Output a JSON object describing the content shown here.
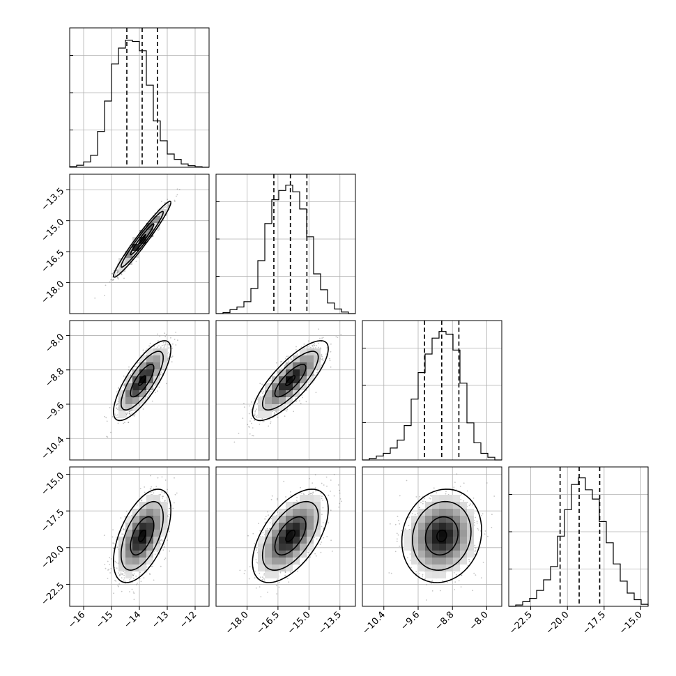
{
  "chart_data": {
    "type": "corner",
    "grid": true,
    "params": [
      {
        "range": [
          -16.5,
          -11.5
        ],
        "ticks": [
          -16,
          -15,
          -14,
          -13,
          -12
        ],
        "tick_labels": [
          "−16",
          "−15",
          "−14",
          "−13",
          "−12"
        ],
        "mean": -13.9,
        "sd": 0.42,
        "quantiles": [
          -14.45,
          -13.9,
          -13.35
        ]
      },
      {
        "range": [
          -19.5,
          -12.75
        ],
        "ticks": [
          -18.0,
          -16.5,
          -15.0,
          -13.5
        ],
        "tick_labels": [
          "−18.0",
          "−16.5",
          "−15.0",
          "−13.5"
        ],
        "mean": -15.9,
        "sd": 0.75,
        "quantiles": [
          -16.7,
          -15.9,
          -15.1
        ]
      },
      {
        "range": [
          -10.9,
          -7.65
        ],
        "ticks": [
          -10.4,
          -9.6,
          -8.8,
          -8.0
        ],
        "tick_labels": [
          "−10.4",
          "−9.6",
          "−8.8",
          "−8.0"
        ],
        "mean": -9.05,
        "sd": 0.38,
        "quantiles": [
          -9.45,
          -9.05,
          -8.65
        ]
      },
      {
        "range": [
          -24.0,
          -14.5
        ],
        "ticks": [
          -22.5,
          -20.0,
          -17.5,
          -15.0
        ],
        "tick_labels": [
          "−22.5",
          "−20.0",
          "−17.5",
          "−15.0"
        ],
        "mean": -19.2,
        "sd": 1.3,
        "quantiles": [
          -20.5,
          -19.2,
          -17.8
        ]
      }
    ],
    "histograms": [
      [
        0.005,
        0.015,
        0.04,
        0.09,
        0.27,
        0.5,
        0.78,
        0.9,
        0.96,
        0.95,
        0.88,
        0.62,
        0.35,
        0.2,
        0.1,
        0.06,
        0.025,
        0.012,
        0.004,
        0.0
      ],
      [
        0.0,
        0.008,
        0.03,
        0.05,
        0.09,
        0.19,
        0.4,
        0.68,
        0.86,
        0.93,
        0.97,
        0.92,
        0.79,
        0.58,
        0.3,
        0.18,
        0.08,
        0.035,
        0.012,
        0.0
      ],
      [
        0.0,
        0.012,
        0.03,
        0.05,
        0.09,
        0.15,
        0.26,
        0.46,
        0.66,
        0.8,
        0.92,
        0.97,
        0.95,
        0.83,
        0.58,
        0.28,
        0.13,
        0.05,
        0.02,
        0.0
      ],
      [
        0.0,
        0.01,
        0.035,
        0.06,
        0.12,
        0.2,
        0.3,
        0.53,
        0.73,
        0.92,
        0.97,
        0.88,
        0.81,
        0.64,
        0.48,
        0.32,
        0.19,
        0.1,
        0.05,
        0.015
      ]
    ],
    "correlations": [
      {
        "i": 1,
        "j": 0,
        "rho": 0.97
      },
      {
        "i": 2,
        "j": 0,
        "rho": 0.78
      },
      {
        "i": 2,
        "j": 1,
        "rho": 0.8
      },
      {
        "i": 3,
        "j": 0,
        "rho": 0.55
      },
      {
        "i": 3,
        "j": 1,
        "rho": 0.57
      },
      {
        "i": 3,
        "j": 2,
        "rho": 0.12
      }
    ]
  }
}
